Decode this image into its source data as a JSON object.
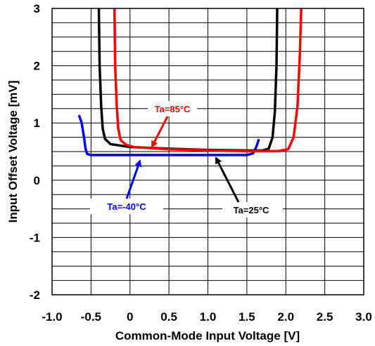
{
  "chart_data": {
    "type": "line",
    "title": "",
    "xlabel": "Common-Mode Input Voltage [V]",
    "ylabel": "Input Offset Voltage [mV]",
    "xlim": [
      -1.0,
      3.0
    ],
    "ylim": [
      -2,
      3
    ],
    "x_ticks": [
      -1.0,
      -0.5,
      0,
      0.5,
      1.0,
      1.5,
      2.0,
      2.5,
      3.0
    ],
    "x_tick_labels": [
      "-1.0",
      "-0.5",
      "0",
      "0.5",
      "1.0",
      "1.5",
      "2.0",
      "2.5",
      "3.0"
    ],
    "y_ticks": [
      -2,
      -1,
      0,
      1,
      2,
      3
    ],
    "y_tick_labels": [
      "-2",
      "-1",
      "0",
      "1",
      "2",
      "3"
    ],
    "grid": {
      "x_step": 0.5,
      "y_step": 0.25,
      "shown": true
    },
    "series": [
      {
        "name": "Ta=-40°C",
        "color": "#0000ff",
        "points": [
          [
            -0.65,
            1.12
          ],
          [
            -0.62,
            1.0
          ],
          [
            -0.59,
            0.75
          ],
          [
            -0.57,
            0.55
          ],
          [
            -0.55,
            0.46
          ],
          [
            -0.5,
            0.44
          ],
          [
            0.0,
            0.44
          ],
          [
            0.5,
            0.44
          ],
          [
            1.0,
            0.44
          ],
          [
            1.5,
            0.44
          ],
          [
            1.58,
            0.47
          ],
          [
            1.62,
            0.58
          ],
          [
            1.65,
            0.7
          ]
        ]
      },
      {
        "name": "Ta=25°C",
        "color": "#000000",
        "points": [
          [
            -0.4,
            3.1
          ],
          [
            -0.39,
            2.0
          ],
          [
            -0.37,
            1.3
          ],
          [
            -0.35,
            0.9
          ],
          [
            -0.32,
            0.72
          ],
          [
            -0.25,
            0.63
          ],
          [
            -0.1,
            0.6
          ],
          [
            0.0,
            0.58
          ],
          [
            0.5,
            0.55
          ],
          [
            1.0,
            0.53
          ],
          [
            1.5,
            0.52
          ],
          [
            1.7,
            0.52
          ],
          [
            1.78,
            0.55
          ],
          [
            1.83,
            0.75
          ],
          [
            1.86,
            1.2
          ],
          [
            1.88,
            2.0
          ],
          [
            1.89,
            3.1
          ]
        ]
      },
      {
        "name": "Ta=85°C",
        "color": "#ff0000",
        "points": [
          [
            -0.2,
            3.1
          ],
          [
            -0.19,
            2.0
          ],
          [
            -0.17,
            1.3
          ],
          [
            -0.15,
            0.9
          ],
          [
            -0.12,
            0.7
          ],
          [
            -0.05,
            0.62
          ],
          [
            0.05,
            0.58
          ],
          [
            0.5,
            0.54
          ],
          [
            1.0,
            0.52
          ],
          [
            1.5,
            0.51
          ],
          [
            1.9,
            0.51
          ],
          [
            2.03,
            0.54
          ],
          [
            2.1,
            0.75
          ],
          [
            2.15,
            1.3
          ],
          [
            2.18,
            2.2
          ],
          [
            2.2,
            3.1
          ]
        ]
      }
    ],
    "annotations": [
      {
        "text": "Ta=85°C",
        "color": "#ff0000"
      },
      {
        "text": "Ta=-40°C",
        "color": "#0000ff"
      },
      {
        "text": "Ta=25°C",
        "color": "#000000"
      }
    ]
  }
}
